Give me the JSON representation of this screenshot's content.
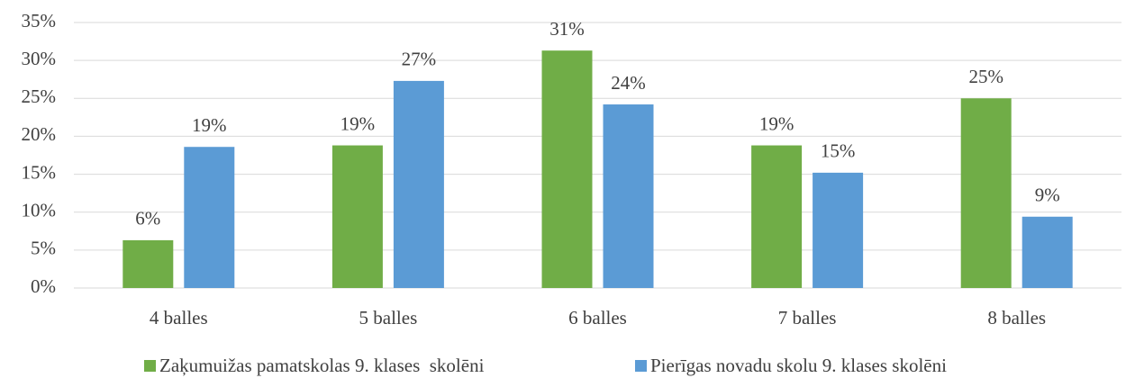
{
  "chart_data": {
    "type": "bar",
    "categories": [
      "4 balles",
      "5 balles",
      "6 balles",
      "7 balles",
      "8 balles"
    ],
    "series": [
      {
        "name": "Zaķumuižas pamatskolas 9. klases  skolēni",
        "color": "#70ad47",
        "values": [
          6.3,
          18.8,
          31.3,
          18.8,
          25.0
        ],
        "value_labels": [
          "6%",
          "19%",
          "31%",
          "19%",
          "25%"
        ]
      },
      {
        "name": "Pierīgas novadu skolu 9. klases skolēni",
        "color": "#5b9bd5",
        "values": [
          18.6,
          27.3,
          24.2,
          15.2,
          9.4
        ],
        "value_labels": [
          "19%",
          "27%",
          "24%",
          "15%",
          "9%"
        ]
      }
    ],
    "ylim": [
      0,
      35
    ],
    "yticks": [
      {
        "value": 0,
        "label": "0%"
      },
      {
        "value": 5,
        "label": "5%"
      },
      {
        "value": 10,
        "label": "10%"
      },
      {
        "value": 15,
        "label": "15%"
      },
      {
        "value": 20,
        "label": "20%"
      },
      {
        "value": 25,
        "label": "25%"
      },
      {
        "value": 30,
        "label": "30%"
      },
      {
        "value": 35,
        "label": "35%"
      }
    ],
    "grid": true,
    "legend": "bottom"
  }
}
